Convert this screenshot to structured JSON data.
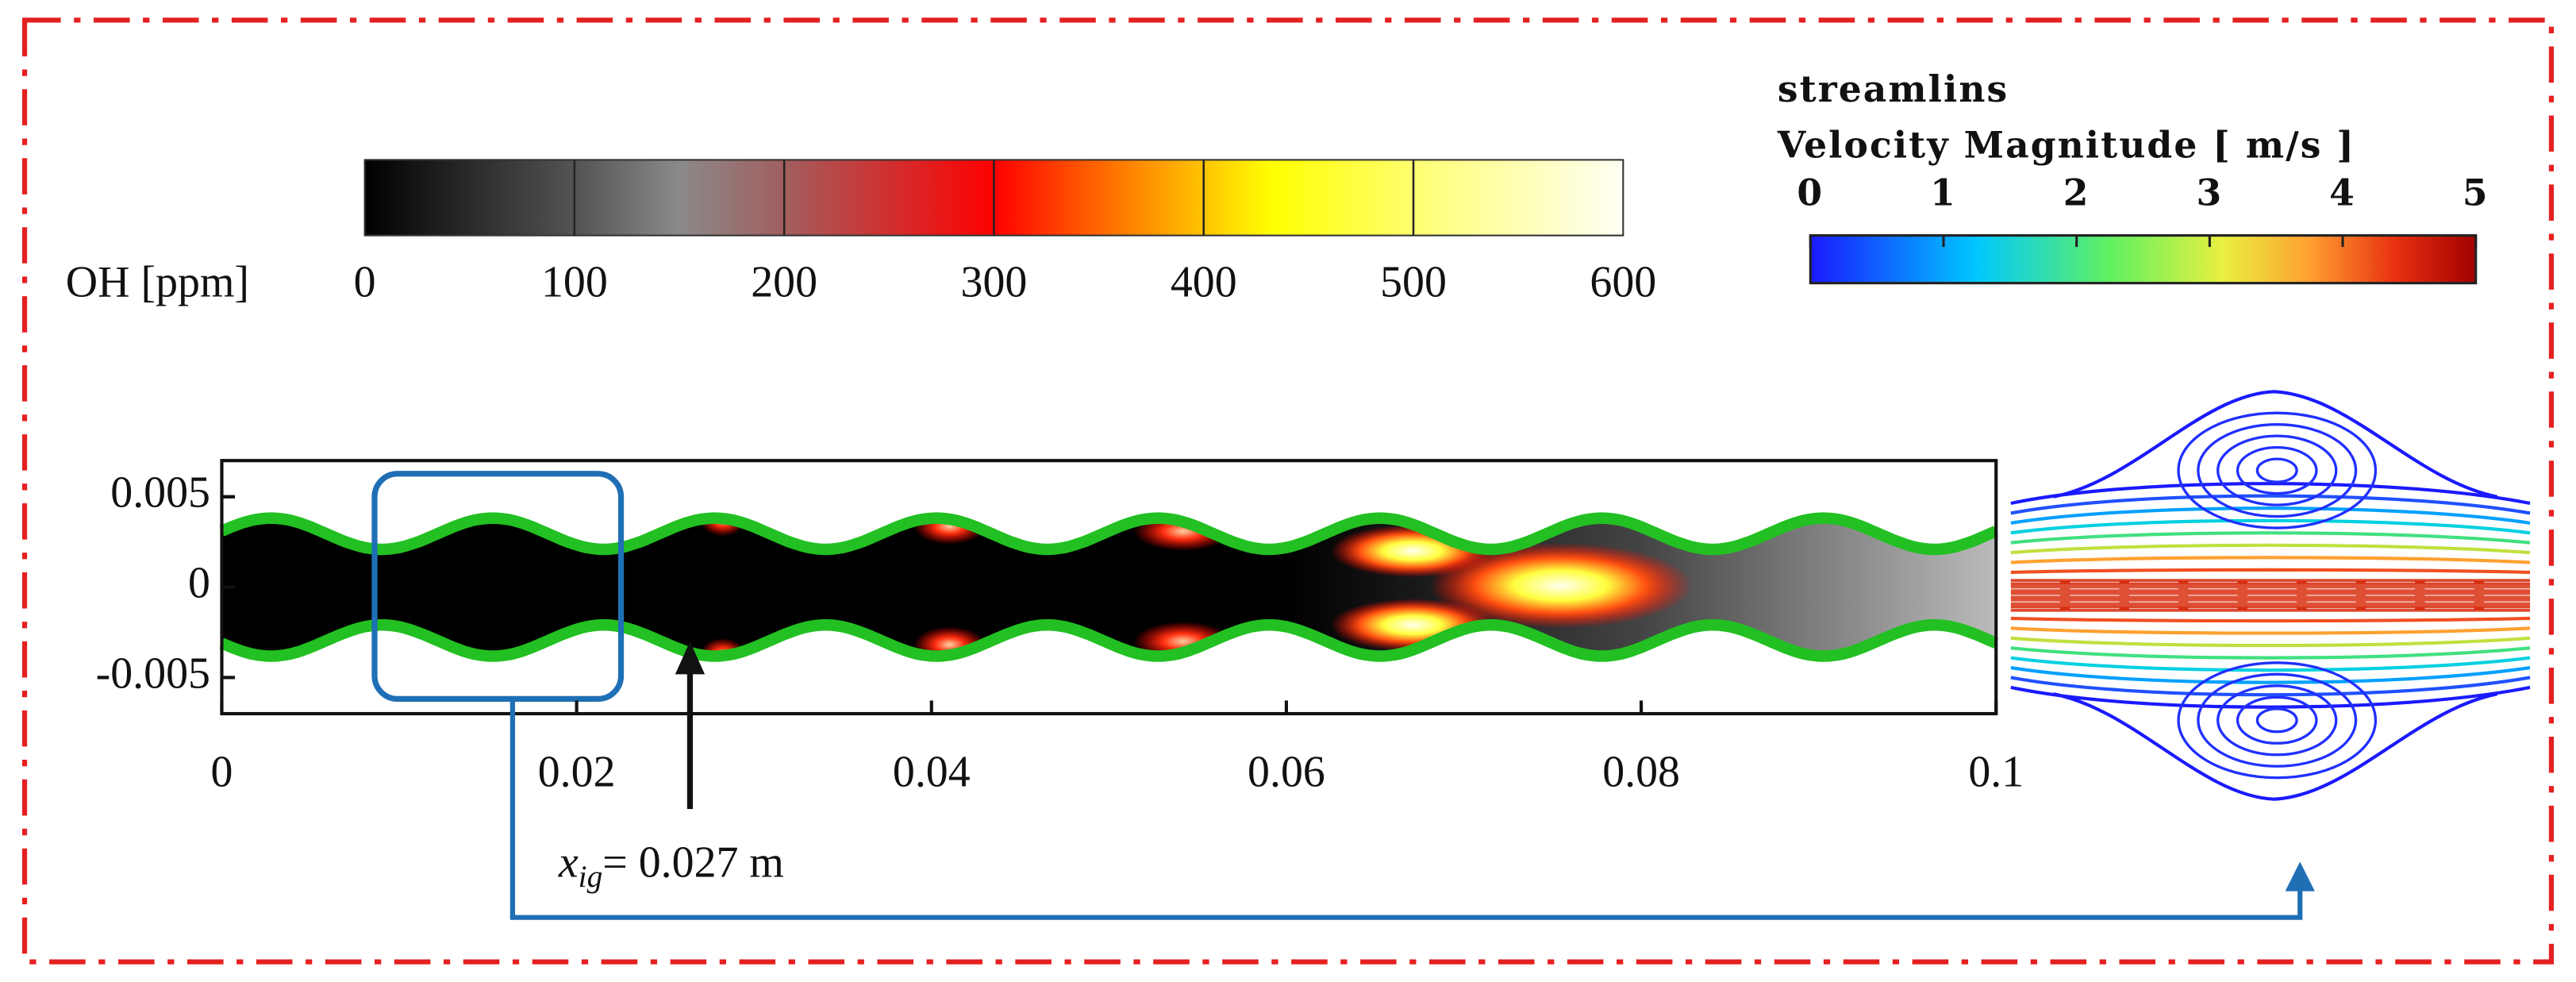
{
  "oh_colorbar": {
    "label": "OH [ppm]",
    "ticks": [
      0,
      100,
      200,
      300,
      400,
      500,
      600
    ]
  },
  "velocity_colorbar": {
    "title": "streamlins",
    "label": "Velocity Magnitude [ m/s ]",
    "ticks": [
      0,
      1,
      2,
      3,
      4,
      5
    ]
  },
  "contour": {
    "xlim": [
      0,
      0.1
    ],
    "xticks": [
      0,
      0.02,
      0.04,
      0.06,
      0.08,
      0.1
    ],
    "ylim": [
      -0.007,
      0.007
    ],
    "yticks": [
      0.005,
      0,
      -0.005
    ]
  },
  "annotation": {
    "symbol": "x",
    "subscript": "ig",
    "text": "= 0.027 m"
  }
}
